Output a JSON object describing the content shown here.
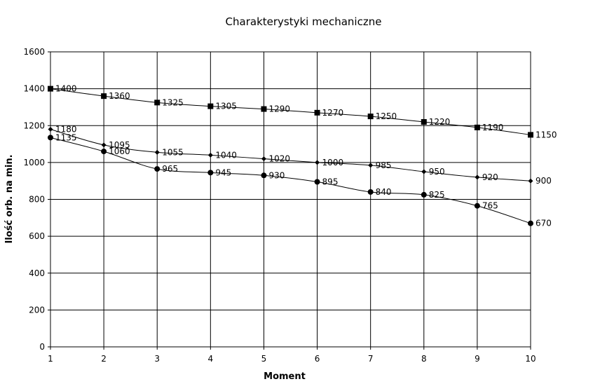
{
  "chart_data": {
    "type": "line",
    "title": "Charakterystyki mechaniczne",
    "xlabel": "Moment",
    "ylabel": "Ilość orb. na min.",
    "x": [
      1,
      2,
      3,
      4,
      5,
      6,
      7,
      8,
      9,
      10
    ],
    "xlim": [
      1,
      10
    ],
    "ylim": [
      0,
      1600
    ],
    "y_ticks": [
      0,
      200,
      400,
      600,
      800,
      1000,
      1200,
      1400,
      1600
    ],
    "grid": true,
    "legend": "none",
    "series": [
      {
        "marker": "square",
        "values": [
          1400,
          1360,
          1325,
          1305,
          1290,
          1270,
          1250,
          1220,
          1190,
          1150
        ]
      },
      {
        "marker": "diamond",
        "values": [
          1180,
          1095,
          1055,
          1040,
          1020,
          1000,
          985,
          950,
          920,
          900
        ]
      },
      {
        "marker": "circle",
        "values": [
          1135,
          1060,
          965,
          945,
          930,
          895,
          840,
          825,
          765,
          670
        ]
      }
    ]
  }
}
